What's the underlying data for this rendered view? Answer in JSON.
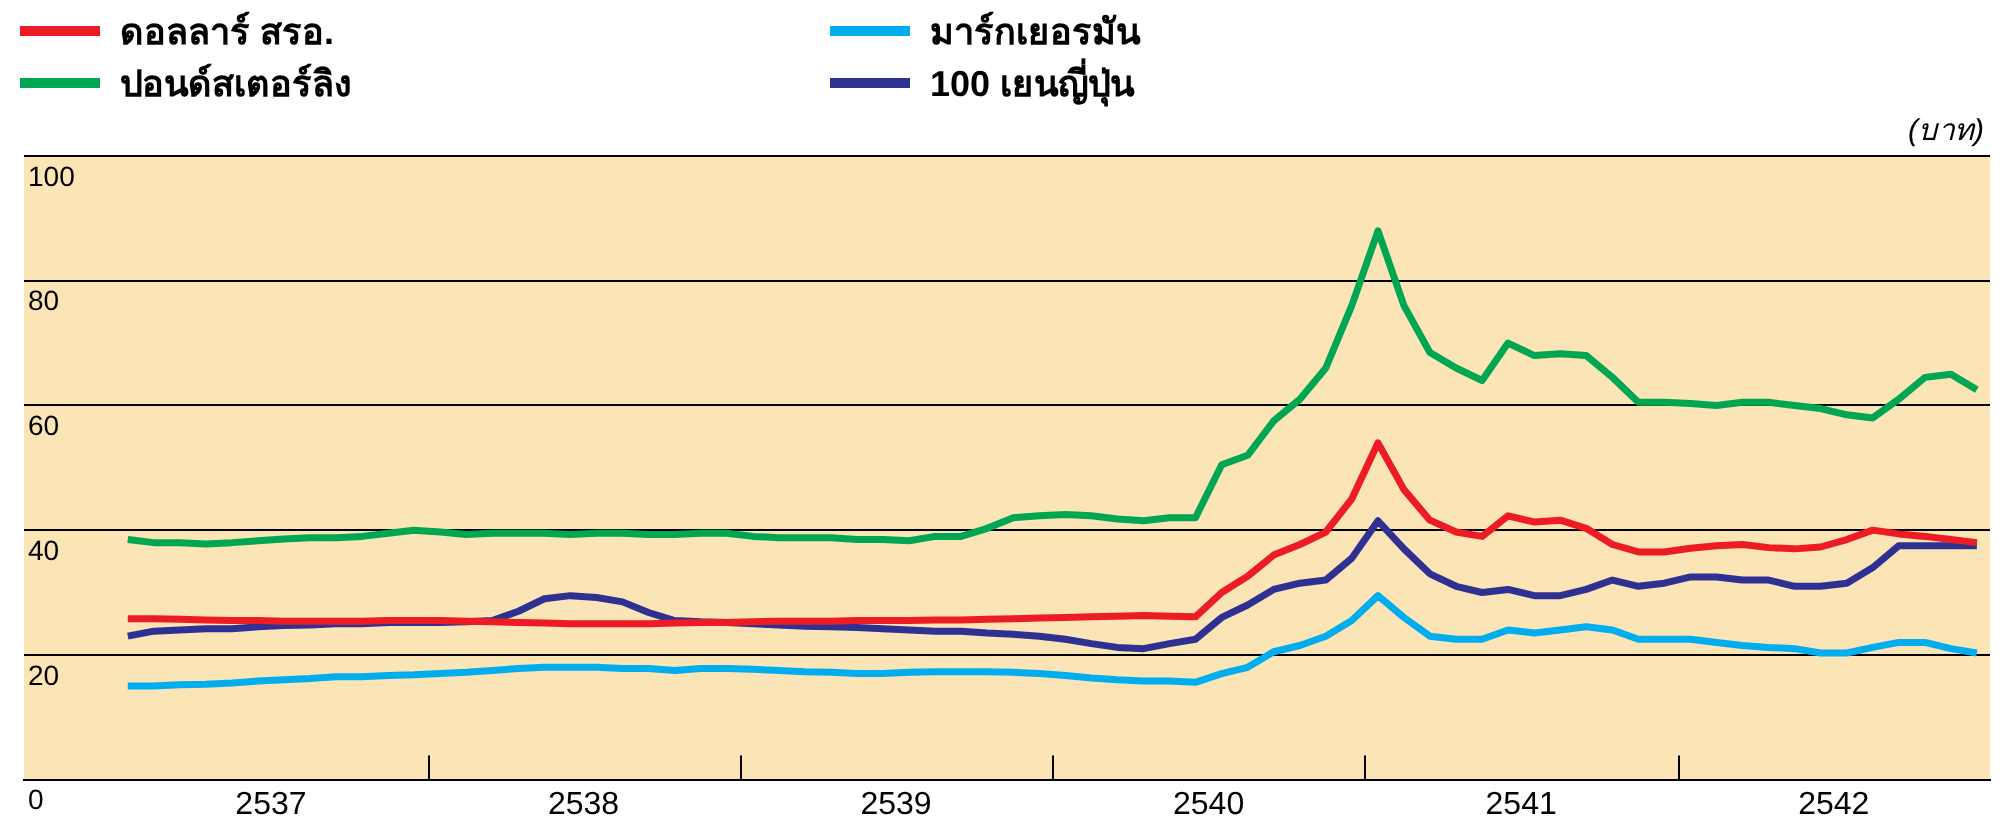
{
  "chart_data": {
    "type": "line",
    "ylabel": "(บาท)",
    "legend": "top left",
    "grid": "y",
    "marker": "none",
    "line_style": "solid",
    "xlim": [
      2536.71,
      2543
    ],
    "ylim": [
      0,
      100
    ],
    "yticks": [
      0,
      20,
      40,
      60,
      80,
      100
    ],
    "xticks": [
      {
        "value": 2537.5,
        "label": "2537"
      },
      {
        "value": 2538,
        "label": null
      },
      {
        "value": 2538.5,
        "label": "2538"
      },
      {
        "value": 2539,
        "label": null
      },
      {
        "value": 2539.5,
        "label": "2539"
      },
      {
        "value": 2540,
        "label": null
      },
      {
        "value": 2540.5,
        "label": "2540"
      },
      {
        "value": 2541,
        "label": null
      },
      {
        "value": 2541.5,
        "label": "2541"
      },
      {
        "value": 2542,
        "label": null
      },
      {
        "value": 2542.5,
        "label": "2542"
      }
    ],
    "x": [
      2537.042,
      2537.125,
      2537.208,
      2537.292,
      2537.375,
      2537.458,
      2537.542,
      2537.625,
      2537.708,
      2537.792,
      2537.875,
      2537.958,
      2538.042,
      2538.125,
      2538.208,
      2538.292,
      2538.375,
      2538.458,
      2538.542,
      2538.625,
      2538.708,
      2538.792,
      2538.875,
      2538.958,
      2539.042,
      2539.125,
      2539.208,
      2539.292,
      2539.375,
      2539.458,
      2539.542,
      2539.625,
      2539.708,
      2539.792,
      2539.875,
      2539.958,
      2540.042,
      2540.125,
      2540.208,
      2540.292,
      2540.375,
      2540.458,
      2540.542,
      2540.625,
      2540.708,
      2540.792,
      2540.875,
      2540.958,
      2541.042,
      2541.125,
      2541.208,
      2541.292,
      2541.375,
      2541.458,
      2541.542,
      2541.625,
      2541.708,
      2541.792,
      2541.875,
      2541.958,
      2542.042,
      2542.125,
      2542.208,
      2542.292,
      2542.375,
      2542.458,
      2542.542,
      2542.625,
      2542.708,
      2542.792,
      2542.875,
      2542.958
    ],
    "series": [
      {
        "name": "ดอลลาร์ สรอ.",
        "color": "#ed1c24",
        "values": [
          25.8,
          25.8,
          25.7,
          25.6,
          25.5,
          25.5,
          25.4,
          25.4,
          25.4,
          25.4,
          25.5,
          25.5,
          25.5,
          25.4,
          25.3,
          25.2,
          25.1,
          25,
          25,
          25,
          25,
          25.1,
          25.2,
          25.2,
          25.3,
          25.4,
          25.4,
          25.4,
          25.5,
          25.5,
          25.5,
          25.6,
          25.6,
          25.7,
          25.8,
          25.9,
          26,
          26.1,
          26.2,
          26.3,
          26.2,
          26.1,
          30,
          32.6,
          36,
          37.7,
          39.7,
          45,
          54,
          46.5,
          41.6,
          39.7,
          39,
          42.3,
          41.3,
          41.6,
          40.3,
          37.7,
          36.5,
          36.5,
          37.1,
          37.5,
          37.7,
          37.2,
          37,
          37.3,
          38.5,
          40,
          39.4,
          39,
          38.5,
          38
        ]
      },
      {
        "name": "ปอนด์สเตอร์ลิง",
        "color": "#00a651",
        "values": [
          38.5,
          38,
          38,
          37.8,
          38,
          38.3,
          38.6,
          38.8,
          38.8,
          39,
          39.5,
          40,
          39.7,
          39.3,
          39.5,
          39.5,
          39.5,
          39.3,
          39.5,
          39.5,
          39.3,
          39.3,
          39.5,
          39.5,
          39,
          38.8,
          38.8,
          38.8,
          38.5,
          38.5,
          38.3,
          39,
          39,
          40.3,
          42,
          42.3,
          42.5,
          42.3,
          41.8,
          41.5,
          42,
          42,
          50.5,
          52,
          57.5,
          61,
          66,
          76,
          88,
          76,
          68.5,
          66,
          64,
          70,
          68,
          68.3,
          68,
          64.5,
          60.5,
          60.5,
          60.3,
          60,
          60.5,
          60.5,
          60,
          59.5,
          58.5,
          58,
          61,
          64.5,
          65,
          62.5
        ]
      },
      {
        "name": "มาร์กเยอรมัน",
        "color": "#00aeef",
        "values": [
          15,
          15,
          15.2,
          15.3,
          15.5,
          15.8,
          16,
          16.2,
          16.5,
          16.5,
          16.7,
          16.8,
          17,
          17.2,
          17.5,
          17.8,
          18,
          18,
          18,
          17.8,
          17.8,
          17.5,
          17.8,
          17.8,
          17.7,
          17.5,
          17.3,
          17.2,
          17,
          17,
          17.2,
          17.3,
          17.3,
          17.3,
          17.2,
          17,
          16.7,
          16.3,
          16,
          15.8,
          15.8,
          15.6,
          17,
          18,
          20.5,
          21.5,
          23,
          25.5,
          29.5,
          26,
          23,
          22.5,
          22.5,
          24,
          23.5,
          24,
          24.5,
          24,
          22.5,
          22.5,
          22.5,
          22,
          21.5,
          21.2,
          21,
          20.3,
          20.3,
          21.2,
          22,
          22,
          21,
          20.3
        ]
      },
      {
        "name": "100 เยนญี่ปุ่น",
        "color": "#2e3192",
        "values": [
          23,
          23.8,
          24,
          24.2,
          24.2,
          24.5,
          24.7,
          24.8,
          25,
          25,
          25.2,
          25.2,
          25.2,
          25.3,
          25.5,
          27,
          29,
          29.5,
          29.2,
          28.5,
          26.8,
          25.5,
          25.3,
          25.2,
          25,
          24.8,
          24.6,
          24.5,
          24.4,
          24.2,
          24,
          23.8,
          23.8,
          23.5,
          23.3,
          23,
          22.5,
          21.8,
          21.2,
          21,
          21.8,
          22.5,
          26,
          28,
          30.5,
          31.5,
          32,
          35.5,
          41.5,
          37,
          33,
          31,
          30,
          30.5,
          29.5,
          29.5,
          30.5,
          32,
          31,
          31.5,
          32.5,
          32.5,
          32,
          32,
          31,
          31,
          31.5,
          34,
          37.5,
          37.5,
          37.5,
          37.5
        ]
      }
    ]
  }
}
